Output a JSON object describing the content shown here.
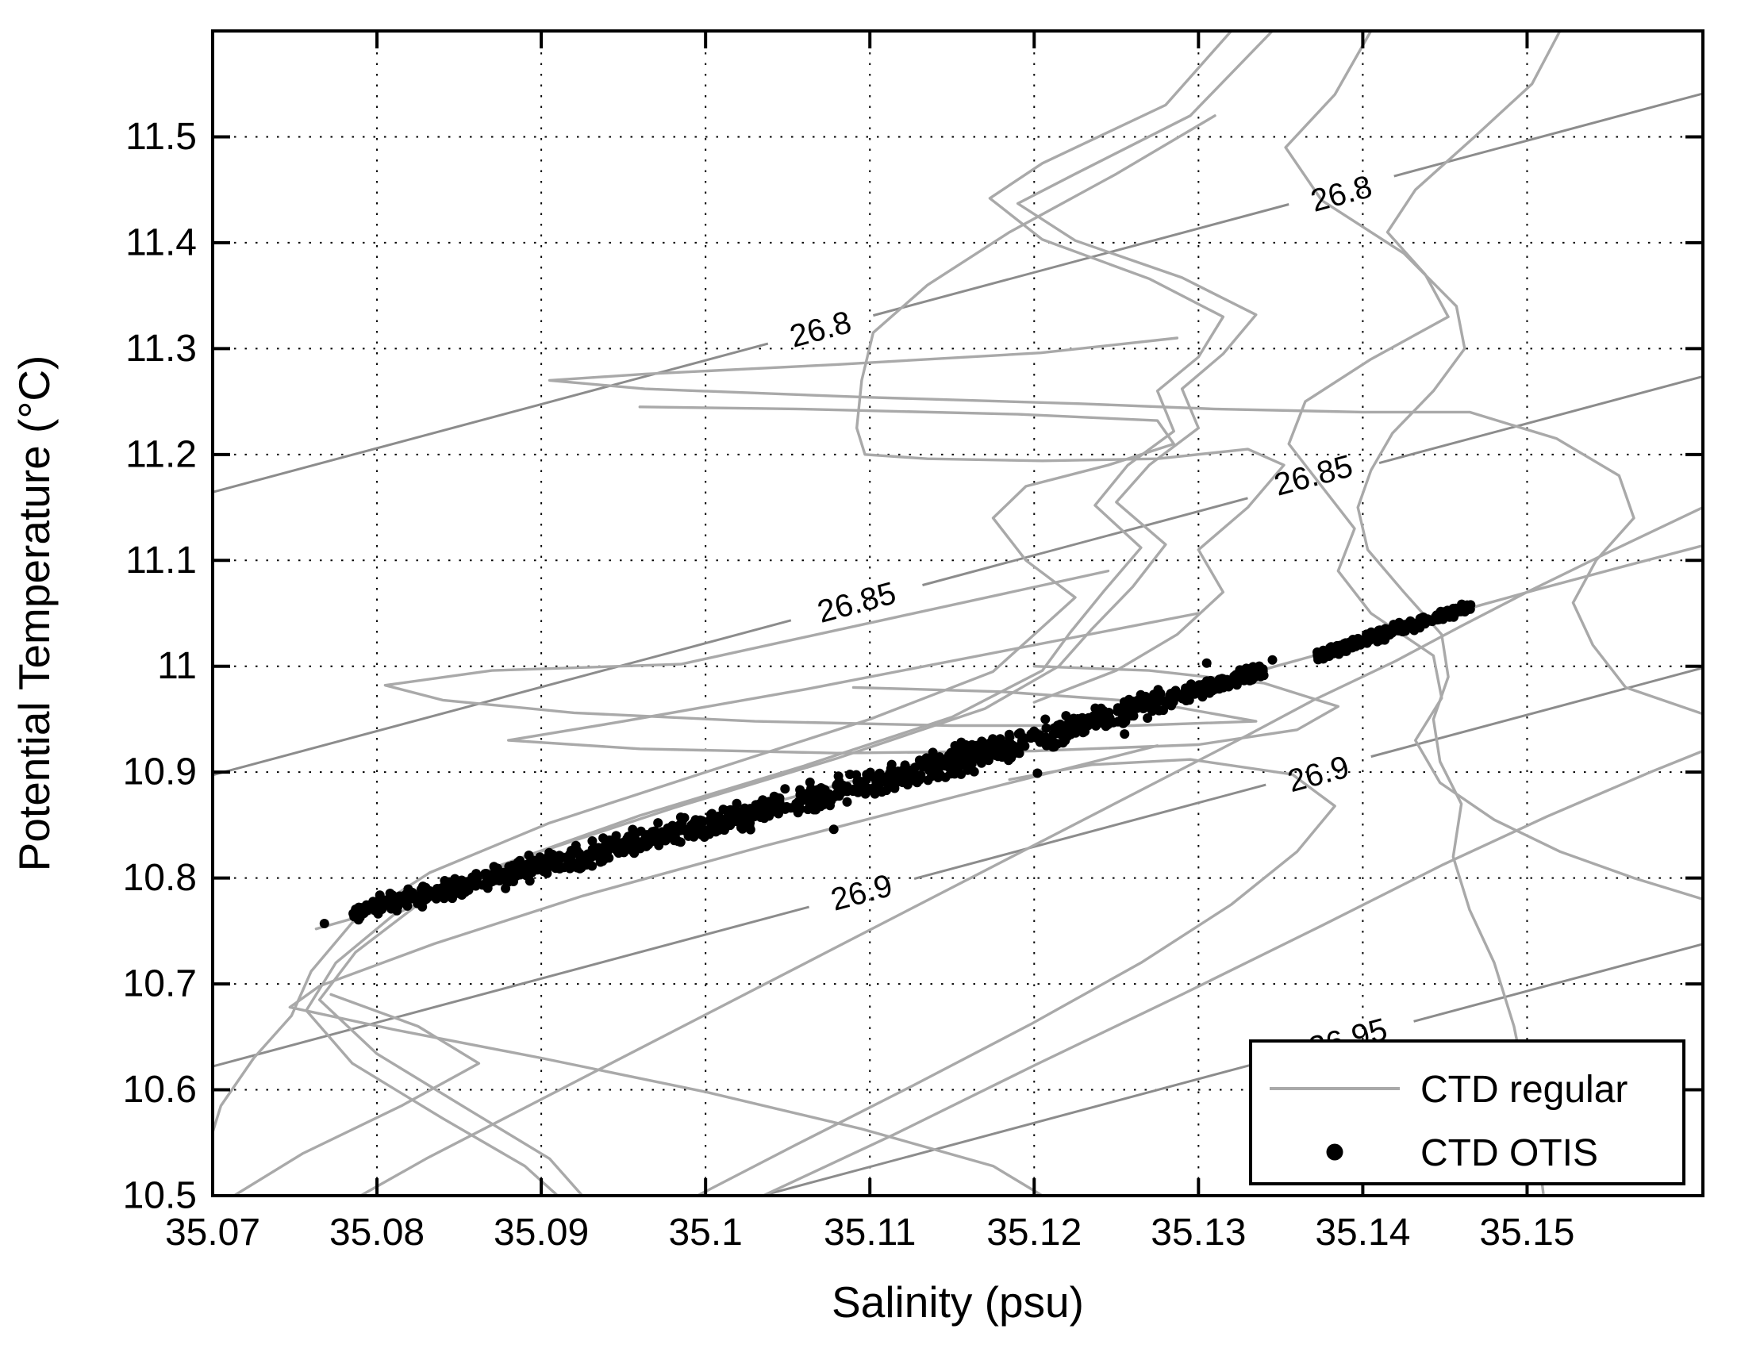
{
  "chart_data": {
    "type": "scatter+line",
    "title": "",
    "xlabel": "Salinity (psu)",
    "ylabel": "Potential Temperature (°C)",
    "xlim": [
      35.07,
      35.1607
    ],
    "ylim": [
      10.5,
      11.6
    ],
    "grid": "dotted",
    "xticks": {
      "values": [
        35.07,
        35.08,
        35.09,
        35.1,
        35.11,
        35.12,
        35.13,
        35.14,
        35.15
      ],
      "labels": [
        "35.07",
        "35.08",
        "35.09",
        "35.1",
        "35.11",
        "35.12",
        "35.13",
        "35.14",
        "35.15"
      ]
    },
    "yticks": {
      "values": [
        10.5,
        10.6,
        10.7,
        10.8,
        10.9,
        11.0,
        11.1,
        11.2,
        11.3,
        11.4,
        11.5
      ],
      "labels": [
        "10.5",
        "10.6",
        "10.7",
        "10.8",
        "10.9",
        "11",
        "11.1",
        "11.2",
        "11.3",
        "11.4",
        "11.5"
      ]
    },
    "legend": {
      "position": "lower right",
      "entries": [
        {
          "label": "CTD regular",
          "marker": "line",
          "color": "#a9a9a9"
        },
        {
          "label": "CTD OTIS",
          "marker": "dot",
          "color": "#000000"
        }
      ]
    },
    "isopycnals": {
      "color": "#8c8c8c",
      "slope_degC_per_psu": 4.15,
      "label_rotation_deg": -15,
      "contours": [
        {
          "sigma_theta": 26.8,
          "label": "26.8",
          "labels_at": [
            [
              35.107,
              11.318
            ],
            [
              35.1387,
              11.446
            ]
          ]
        },
        {
          "sigma_theta": 26.85,
          "label": "26.85",
          "labels_at": [
            [
              35.1092,
              11.06
            ],
            [
              35.137,
              11.18
            ]
          ]
        },
        {
          "sigma_theta": 26.9,
          "label": "26.9",
          "labels_at": [
            [
              35.1095,
              10.786
            ],
            [
              35.1373,
              10.898
            ]
          ]
        },
        {
          "sigma_theta": 26.95,
          "label": "26.95",
          "labels_at": [
            [
              35.1391,
              10.648
            ]
          ]
        }
      ]
    },
    "ctd_regular_profiles": [
      [
        [
          35.132,
          11.6
        ],
        [
          35.128,
          11.53
        ],
        [
          35.1205,
          11.475
        ],
        [
          35.1173,
          11.442
        ],
        [
          35.1205,
          11.403
        ],
        [
          35.127,
          11.366
        ],
        [
          35.1315,
          11.33
        ],
        [
          35.13,
          11.292
        ],
        [
          35.1275,
          11.26
        ],
        [
          35.1285,
          11.222
        ],
        [
          35.1257,
          11.19
        ],
        [
          35.1237,
          11.152
        ],
        [
          35.1265,
          11.112
        ],
        [
          35.1243,
          11.072
        ],
        [
          35.1222,
          11.032
        ],
        [
          35.1205,
          10.996
        ],
        [
          35.115,
          10.952
        ],
        [
          35.106,
          10.906
        ],
        [
          35.096,
          10.859
        ],
        [
          35.0875,
          10.812
        ],
        [
          35.081,
          10.765
        ],
        [
          35.0775,
          10.72
        ],
        [
          35.0757,
          10.675
        ],
        [
          35.0785,
          10.625
        ],
        [
          35.084,
          10.573
        ],
        [
          35.089,
          10.528
        ],
        [
          35.091,
          10.5
        ]
      ],
      [
        [
          35.1345,
          11.6
        ],
        [
          35.1295,
          11.52
        ],
        [
          35.1225,
          11.465
        ],
        [
          35.119,
          11.437
        ],
        [
          35.1225,
          11.402
        ],
        [
          35.129,
          11.367
        ],
        [
          35.1335,
          11.332
        ],
        [
          35.1315,
          11.295
        ],
        [
          35.129,
          11.262
        ],
        [
          35.13,
          11.225
        ],
        [
          35.127,
          11.19
        ],
        [
          35.125,
          11.155
        ],
        [
          35.128,
          11.115
        ],
        [
          35.126,
          11.075
        ],
        [
          35.1235,
          11.035
        ],
        [
          35.1215,
          11.0
        ],
        [
          35.117,
          10.96
        ],
        [
          35.108,
          10.913
        ],
        [
          35.098,
          10.866
        ],
        [
          35.089,
          10.82
        ],
        [
          35.0825,
          10.775
        ],
        [
          35.0787,
          10.73
        ],
        [
          35.0765,
          10.685
        ],
        [
          35.08,
          10.634
        ],
        [
          35.0855,
          10.582
        ],
        [
          35.0905,
          10.535
        ],
        [
          35.0925,
          10.5
        ]
      ],
      [
        [
          35.1405,
          11.6
        ],
        [
          35.1383,
          11.54
        ],
        [
          35.1353,
          11.49
        ],
        [
          35.1375,
          11.44
        ],
        [
          35.1425,
          11.39
        ],
        [
          35.1457,
          11.34
        ],
        [
          35.1462,
          11.3
        ],
        [
          35.1443,
          11.26
        ],
        [
          35.1418,
          11.22
        ],
        [
          35.1405,
          11.185
        ],
        [
          35.1397,
          11.15
        ],
        [
          35.1403,
          11.11
        ],
        [
          35.1425,
          11.07
        ],
        [
          35.1448,
          11.03
        ],
        [
          35.1452,
          10.99
        ],
        [
          35.1443,
          10.95
        ],
        [
          35.1447,
          10.91
        ],
        [
          35.146,
          10.87
        ],
        [
          35.1455,
          10.82
        ],
        [
          35.1465,
          10.77
        ],
        [
          35.148,
          10.72
        ],
        [
          35.1492,
          10.66
        ],
        [
          35.15,
          10.6
        ],
        [
          35.1507,
          10.54
        ],
        [
          35.151,
          10.5
        ]
      ],
      [
        [
          35.152,
          11.6
        ],
        [
          35.1503,
          11.55
        ],
        [
          35.1468,
          11.5
        ],
        [
          35.1432,
          11.45
        ],
        [
          35.1415,
          11.41
        ],
        [
          35.1438,
          11.37
        ],
        [
          35.1452,
          11.33
        ],
        [
          35.1405,
          11.29
        ],
        [
          35.1365,
          11.25
        ],
        [
          35.1355,
          11.21
        ],
        [
          35.1375,
          11.17
        ],
        [
          35.1395,
          11.13
        ],
        [
          35.1385,
          11.09
        ],
        [
          35.1405,
          11.05
        ],
        [
          35.1443,
          11.01
        ],
        [
          35.1448,
          10.97
        ],
        [
          35.1432,
          10.93
        ],
        [
          35.1447,
          10.89
        ],
        [
          35.148,
          10.855
        ],
        [
          35.152,
          10.825
        ],
        [
          35.1565,
          10.8
        ],
        [
          35.1607,
          10.78
        ]
      ],
      [
        [
          35.1287,
          11.31
        ],
        [
          35.1204,
          11.296
        ],
        [
          35.108,
          11.285
        ],
        [
          35.0963,
          11.276
        ],
        [
          35.0905,
          11.27
        ],
        [
          35.0963,
          11.262
        ],
        [
          35.11,
          11.254
        ],
        [
          35.1228,
          11.248
        ],
        [
          35.1309,
          11.243
        ],
        [
          35.14,
          11.24
        ],
        [
          35.1465,
          11.24
        ],
        [
          35.1518,
          11.215
        ],
        [
          35.1556,
          11.18
        ],
        [
          35.1565,
          11.14
        ],
        [
          35.1542,
          11.1
        ],
        [
          35.1528,
          11.06
        ],
        [
          35.154,
          11.02
        ],
        [
          35.156,
          10.98
        ],
        [
          35.1607,
          10.955
        ]
      ],
      [
        [
          35.096,
          11.245
        ],
        [
          35.1055,
          11.243
        ],
        [
          35.119,
          11.238
        ],
        [
          35.1275,
          11.232
        ],
        [
          35.1285,
          11.21
        ],
        [
          35.1245,
          11.19
        ],
        [
          35.1195,
          11.17
        ],
        [
          35.1175,
          11.14
        ],
        [
          35.1195,
          11.1
        ],
        [
          35.1225,
          11.065
        ],
        [
          35.12,
          11.03
        ],
        [
          35.1175,
          10.995
        ],
        [
          35.11,
          10.95
        ],
        [
          35.1,
          10.9
        ],
        [
          35.0905,
          10.852
        ],
        [
          35.0832,
          10.805
        ],
        [
          35.0785,
          10.758
        ],
        [
          35.076,
          10.712
        ],
        [
          35.0748,
          10.67
        ],
        [
          35.0725,
          10.63
        ],
        [
          35.0705,
          10.585
        ],
        [
          35.07,
          10.56
        ]
      ],
      [
        [
          35.1245,
          11.09
        ],
        [
          35.1115,
          11.046
        ],
        [
          35.0985,
          11.002
        ],
        [
          35.087,
          10.996
        ],
        [
          35.0805,
          10.982
        ],
        [
          35.084,
          10.968
        ],
        [
          35.092,
          10.956
        ],
        [
          35.103,
          10.948
        ],
        [
          35.115,
          10.944
        ],
        [
          35.126,
          10.944
        ],
        [
          35.1335,
          10.948
        ],
        [
          35.127,
          10.966
        ],
        [
          35.118,
          10.976
        ],
        [
          35.109,
          10.98
        ]
      ],
      [
        [
          35.13,
          11.05
        ],
        [
          35.118,
          11.014
        ],
        [
          35.106,
          10.978
        ],
        [
          35.095,
          10.948
        ],
        [
          35.088,
          10.93
        ],
        [
          35.096,
          10.922
        ],
        [
          35.108,
          10.918
        ],
        [
          35.12,
          10.92
        ],
        [
          35.13,
          10.926
        ],
        [
          35.136,
          10.94
        ],
        [
          35.1385,
          10.962
        ],
        [
          35.134,
          10.984
        ],
        [
          35.127,
          10.996
        ],
        [
          35.12,
          11.0
        ]
      ],
      [
        [
          35.1275,
          10.925
        ],
        [
          35.1155,
          10.878
        ],
        [
          35.1035,
          10.83
        ],
        [
          35.0925,
          10.783
        ],
        [
          35.0835,
          10.738
        ],
        [
          35.0765,
          10.698
        ],
        [
          35.0747,
          10.678
        ],
        [
          35.081,
          10.657
        ],
        [
          35.09,
          10.63
        ],
        [
          35.1,
          10.598
        ],
        [
          35.1095,
          10.563
        ],
        [
          35.1175,
          10.528
        ],
        [
          35.1205,
          10.5
        ]
      ],
      [
        [
          35.0995,
          10.5
        ],
        [
          35.1055,
          10.548
        ],
        [
          35.1125,
          10.603
        ],
        [
          35.1198,
          10.662
        ],
        [
          35.1265,
          10.72
        ],
        [
          35.132,
          10.775
        ],
        [
          35.136,
          10.825
        ],
        [
          35.1383,
          10.868
        ],
        [
          35.1357,
          10.898
        ],
        [
          35.1295,
          10.912
        ],
        [
          35.1235,
          10.907
        ],
        [
          35.1185,
          10.893
        ]
      ],
      [
        [
          35.1035,
          10.5
        ],
        [
          35.1115,
          10.558
        ],
        [
          35.12,
          10.623
        ],
        [
          35.129,
          10.69
        ],
        [
          35.1375,
          10.755
        ],
        [
          35.1448,
          10.812
        ],
        [
          35.1512,
          10.858
        ],
        [
          35.1575,
          10.9
        ],
        [
          35.1607,
          10.92
        ]
      ],
      [
        [
          35.0763,
          10.752
        ],
        [
          35.0845,
          10.788
        ],
        [
          35.0945,
          10.831
        ],
        [
          35.1045,
          10.873
        ],
        [
          35.1145,
          10.915
        ],
        [
          35.1245,
          10.957
        ],
        [
          35.134,
          10.997
        ],
        [
          35.1375,
          11.012
        ],
        [
          35.1432,
          11.037
        ],
        [
          35.147,
          11.057
        ],
        [
          35.1505,
          11.072
        ],
        [
          35.1558,
          11.094
        ],
        [
          35.1607,
          11.114
        ]
      ],
      [
        [
          35.0713,
          10.5
        ],
        [
          35.0755,
          10.54
        ],
        [
          35.0815,
          10.585
        ],
        [
          35.0862,
          10.625
        ],
        [
          35.0825,
          10.66
        ],
        [
          35.0772,
          10.69
        ]
      ],
      [
        [
          35.079,
          10.5
        ],
        [
          35.083,
          10.535
        ],
        [
          35.088,
          10.575
        ],
        [
          35.093,
          10.615
        ],
        [
          35.098,
          10.655
        ],
        [
          35.103,
          10.695
        ],
        [
          35.108,
          10.735
        ],
        [
          35.113,
          10.775
        ],
        [
          35.118,
          10.815
        ],
        [
          35.123,
          10.855
        ],
        [
          35.128,
          10.895
        ],
        [
          35.133,
          10.935
        ],
        [
          35.137,
          10.968
        ],
        [
          35.142,
          11.005
        ],
        [
          35.146,
          11.038
        ],
        [
          35.15,
          11.07
        ],
        [
          35.155,
          11.108
        ],
        [
          35.1607,
          11.15
        ]
      ],
      [
        [
          35.131,
          11.52
        ],
        [
          35.125,
          11.465
        ],
        [
          35.1185,
          11.41
        ],
        [
          35.1135,
          11.36
        ],
        [
          35.1102,
          11.315
        ],
        [
          35.1095,
          11.27
        ],
        [
          35.1092,
          11.225
        ],
        [
          35.1097,
          11.2
        ],
        [
          35.1135,
          11.196
        ],
        [
          35.1205,
          11.194
        ],
        [
          35.1275,
          11.196
        ],
        [
          35.133,
          11.205
        ],
        [
          35.1352,
          11.19
        ],
        [
          35.133,
          11.15
        ],
        [
          35.13,
          11.11
        ],
        [
          35.1315,
          11.07
        ],
        [
          35.1287,
          11.03
        ],
        [
          35.125,
          10.996
        ],
        [
          35.12,
          10.966
        ]
      ]
    ],
    "ctd_otis": {
      "dot_radius_px": 6,
      "bands": [
        {
          "n_points": 1150,
          "points": [
            [
              35.0785,
              10.766,
              0.011
            ],
            [
              35.088,
              10.803,
              0.015
            ],
            [
              35.098,
              10.842,
              0.017
            ],
            [
              35.108,
              10.881,
              0.018
            ],
            [
              35.118,
              10.922,
              0.019
            ],
            [
              35.1265,
              10.962,
              0.015
            ],
            [
              35.134,
              10.996,
              0.009
            ]
          ]
        },
        {
          "n_points": 240,
          "points": [
            [
              35.1372,
              11.01,
              0.007
            ],
            [
              35.142,
              11.034,
              0.008
            ],
            [
              35.1466,
              11.057,
              0.006
            ]
          ]
        }
      ],
      "outliers": [
        [
          35.1202,
          10.899
        ],
        [
          35.1078,
          10.846
        ],
        [
          35.1255,
          10.936
        ],
        [
          35.1305,
          11.003
        ],
        [
          35.1345,
          11.006
        ],
        [
          35.0768,
          10.757
        ]
      ]
    },
    "colors": {
      "profile_gray": "#a9a9a9",
      "isopycnal_gray": "#8c8c8c",
      "dot_black": "#000000",
      "frame_black": "#000000",
      "background": "#ffffff"
    }
  }
}
